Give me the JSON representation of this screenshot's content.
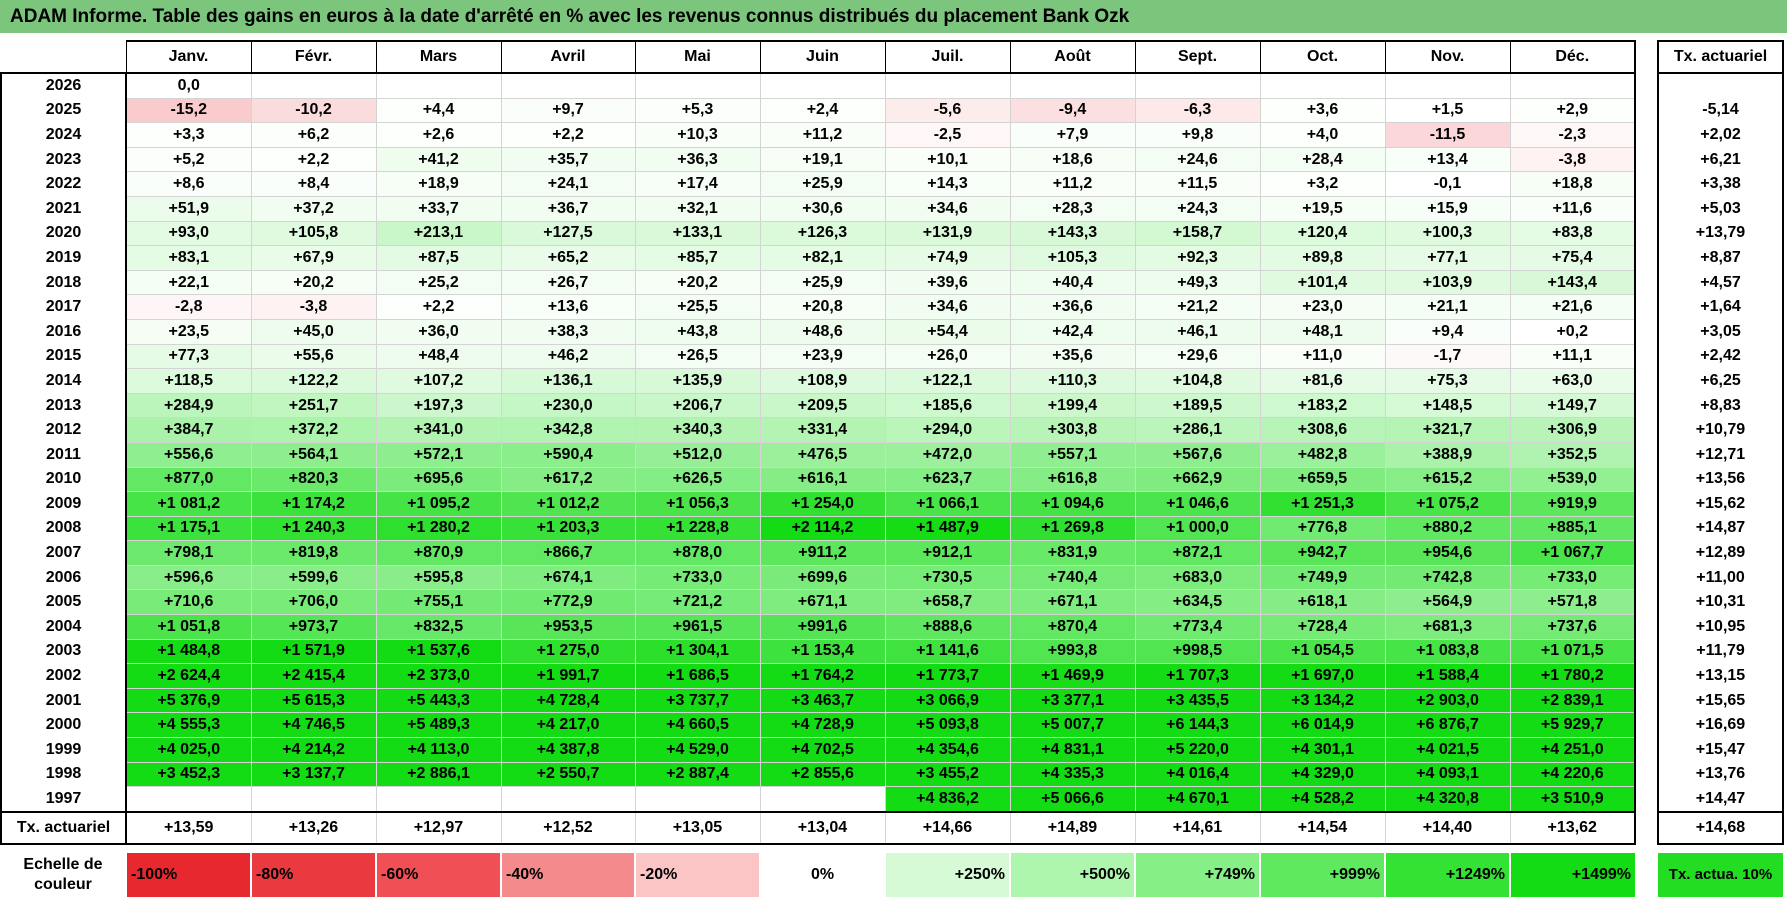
{
  "title": "ADAM Informe. Table des gains en euros à la date d'arrêté en % avec les revenus connus distribués du placement Bank Ozk",
  "months": [
    "Janv.",
    "Févr.",
    "Mars",
    "Avril",
    "Mai",
    "Juin",
    "Juil.",
    "Août",
    "Sept.",
    "Oct.",
    "Nov.",
    "Déc."
  ],
  "tx_header": "Tx. actuariel",
  "rows": [
    {
      "year": "2026",
      "cells": [
        "0,0",
        "",
        "",
        "",
        "",
        "",
        "",
        "",
        "",
        "",
        "",
        ""
      ],
      "tx": ""
    },
    {
      "year": "2025",
      "cells": [
        "-15,2",
        "-10,2",
        "+4,4",
        "+9,7",
        "+5,3",
        "+2,4",
        "-5,6",
        "-9,4",
        "-6,3",
        "+3,6",
        "+1,5",
        "+2,9"
      ],
      "tx": "-5,14"
    },
    {
      "year": "2024",
      "cells": [
        "+3,3",
        "+6,2",
        "+2,6",
        "+2,2",
        "+10,3",
        "+11,2",
        "-2,5",
        "+7,9",
        "+9,8",
        "+4,0",
        "-11,5",
        "-2,3"
      ],
      "tx": "+2,02"
    },
    {
      "year": "2023",
      "cells": [
        "+5,2",
        "+2,2",
        "+41,2",
        "+35,7",
        "+36,3",
        "+19,1",
        "+10,1",
        "+18,6",
        "+24,6",
        "+28,4",
        "+13,4",
        "-3,8"
      ],
      "tx": "+6,21"
    },
    {
      "year": "2022",
      "cells": [
        "+8,6",
        "+8,4",
        "+18,9",
        "+24,1",
        "+17,4",
        "+25,9",
        "+14,3",
        "+11,2",
        "+11,5",
        "+3,2",
        "-0,1",
        "+18,8"
      ],
      "tx": "+3,38"
    },
    {
      "year": "2021",
      "cells": [
        "+51,9",
        "+37,2",
        "+33,7",
        "+36,7",
        "+32,1",
        "+30,6",
        "+34,6",
        "+28,3",
        "+24,3",
        "+19,5",
        "+15,9",
        "+11,6"
      ],
      "tx": "+5,03"
    },
    {
      "year": "2020",
      "cells": [
        "+93,0",
        "+105,8",
        "+213,1",
        "+127,5",
        "+133,1",
        "+126,3",
        "+131,9",
        "+143,3",
        "+158,7",
        "+120,4",
        "+100,3",
        "+83,8"
      ],
      "tx": "+13,79"
    },
    {
      "year": "2019",
      "cells": [
        "+83,1",
        "+67,9",
        "+87,5",
        "+65,2",
        "+85,7",
        "+82,1",
        "+74,9",
        "+105,3",
        "+92,3",
        "+89,8",
        "+77,1",
        "+75,4"
      ],
      "tx": "+8,87"
    },
    {
      "year": "2018",
      "cells": [
        "+22,1",
        "+20,2",
        "+25,2",
        "+26,7",
        "+20,2",
        "+25,9",
        "+39,6",
        "+40,4",
        "+49,3",
        "+101,4",
        "+103,9",
        "+143,4"
      ],
      "tx": "+4,57"
    },
    {
      "year": "2017",
      "cells": [
        "-2,8",
        "-3,8",
        "+2,2",
        "+13,6",
        "+25,5",
        "+20,8",
        "+34,6",
        "+36,6",
        "+21,2",
        "+23,0",
        "+21,1",
        "+21,6"
      ],
      "tx": "+1,64"
    },
    {
      "year": "2016",
      "cells": [
        "+23,5",
        "+45,0",
        "+36,0",
        "+38,3",
        "+43,8",
        "+48,6",
        "+54,4",
        "+42,4",
        "+46,1",
        "+48,1",
        "+9,4",
        "+0,2"
      ],
      "tx": "+3,05"
    },
    {
      "year": "2015",
      "cells": [
        "+77,3",
        "+55,6",
        "+48,4",
        "+46,2",
        "+26,5",
        "+23,9",
        "+26,0",
        "+35,6",
        "+29,6",
        "+11,0",
        "-1,7",
        "+11,1"
      ],
      "tx": "+2,42"
    },
    {
      "year": "2014",
      "cells": [
        "+118,5",
        "+122,2",
        "+107,2",
        "+136,1",
        "+135,9",
        "+108,9",
        "+122,1",
        "+110,3",
        "+104,8",
        "+81,6",
        "+75,3",
        "+63,0"
      ],
      "tx": "+6,25"
    },
    {
      "year": "2013",
      "cells": [
        "+284,9",
        "+251,7",
        "+197,3",
        "+230,0",
        "+206,7",
        "+209,5",
        "+185,6",
        "+199,4",
        "+189,5",
        "+183,2",
        "+148,5",
        "+149,7"
      ],
      "tx": "+8,83"
    },
    {
      "year": "2012",
      "cells": [
        "+384,7",
        "+372,2",
        "+341,0",
        "+342,8",
        "+340,3",
        "+331,4",
        "+294,0",
        "+303,8",
        "+286,1",
        "+308,6",
        "+321,7",
        "+306,9"
      ],
      "tx": "+10,79"
    },
    {
      "year": "2011",
      "cells": [
        "+556,6",
        "+564,1",
        "+572,1",
        "+590,4",
        "+512,0",
        "+476,5",
        "+472,0",
        "+557,1",
        "+567,6",
        "+482,8",
        "+388,9",
        "+352,5"
      ],
      "tx": "+12,71"
    },
    {
      "year": "2010",
      "cells": [
        "+877,0",
        "+820,3",
        "+695,6",
        "+617,2",
        "+626,5",
        "+616,1",
        "+623,7",
        "+616,8",
        "+662,9",
        "+659,5",
        "+615,2",
        "+539,0"
      ],
      "tx": "+13,56"
    },
    {
      "year": "2009",
      "cells": [
        "+1 081,2",
        "+1 174,2",
        "+1 095,2",
        "+1 012,2",
        "+1 056,3",
        "+1 254,0",
        "+1 066,1",
        "+1 094,6",
        "+1 046,6",
        "+1 251,3",
        "+1 075,2",
        "+919,9"
      ],
      "tx": "+15,62"
    },
    {
      "year": "2008",
      "cells": [
        "+1 175,1",
        "+1 240,3",
        "+1 280,2",
        "+1 203,3",
        "+1 228,8",
        "+2 114,2",
        "+1 487,9",
        "+1 269,8",
        "+1 000,0",
        "+776,8",
        "+880,2",
        "+885,1"
      ],
      "tx": "+14,87"
    },
    {
      "year": "2007",
      "cells": [
        "+798,1",
        "+819,8",
        "+870,9",
        "+866,7",
        "+878,0",
        "+911,2",
        "+912,1",
        "+831,9",
        "+872,1",
        "+942,7",
        "+954,6",
        "+1 067,7"
      ],
      "tx": "+12,89"
    },
    {
      "year": "2006",
      "cells": [
        "+596,6",
        "+599,6",
        "+595,8",
        "+674,1",
        "+733,0",
        "+699,6",
        "+730,5",
        "+740,4",
        "+683,0",
        "+749,9",
        "+742,8",
        "+733,0"
      ],
      "tx": "+11,00"
    },
    {
      "year": "2005",
      "cells": [
        "+710,6",
        "+706,0",
        "+755,1",
        "+772,9",
        "+721,2",
        "+671,1",
        "+658,7",
        "+671,1",
        "+634,5",
        "+618,1",
        "+564,9",
        "+571,8"
      ],
      "tx": "+10,31"
    },
    {
      "year": "2004",
      "cells": [
        "+1 051,8",
        "+973,7",
        "+832,5",
        "+953,5",
        "+961,5",
        "+991,6",
        "+888,6",
        "+870,4",
        "+773,4",
        "+728,4",
        "+681,3",
        "+737,6"
      ],
      "tx": "+10,95"
    },
    {
      "year": "2003",
      "cells": [
        "+1 484,8",
        "+1 571,9",
        "+1 537,6",
        "+1 275,0",
        "+1 304,1",
        "+1 153,4",
        "+1 141,6",
        "+993,8",
        "+998,5",
        "+1 054,5",
        "+1 083,8",
        "+1 071,5"
      ],
      "tx": "+11,79"
    },
    {
      "year": "2002",
      "cells": [
        "+2 624,4",
        "+2 415,4",
        "+2 373,0",
        "+1 991,7",
        "+1 686,5",
        "+1 764,2",
        "+1 773,7",
        "+1 469,9",
        "+1 707,3",
        "+1 697,0",
        "+1 588,4",
        "+1 780,2"
      ],
      "tx": "+13,15"
    },
    {
      "year": "2001",
      "cells": [
        "+5 376,9",
        "+5 615,3",
        "+5 443,3",
        "+4 728,4",
        "+3 737,7",
        "+3 463,7",
        "+3 066,9",
        "+3 377,1",
        "+3 435,5",
        "+3 134,2",
        "+2 903,0",
        "+2 839,1"
      ],
      "tx": "+15,65"
    },
    {
      "year": "2000",
      "cells": [
        "+4 555,3",
        "+4 746,5",
        "+5 489,3",
        "+4 217,0",
        "+4 660,5",
        "+4 728,9",
        "+5 093,8",
        "+5 007,7",
        "+6 144,3",
        "+6 014,9",
        "+6 876,7",
        "+5 929,7"
      ],
      "tx": "+16,69"
    },
    {
      "year": "1999",
      "cells": [
        "+4 025,0",
        "+4 214,2",
        "+4 113,0",
        "+4 387,8",
        "+4 529,0",
        "+4 702,5",
        "+4 354,6",
        "+4 831,1",
        "+5 220,0",
        "+4 301,1",
        "+4 021,5",
        "+4 251,0"
      ],
      "tx": "+15,47"
    },
    {
      "year": "1998",
      "cells": [
        "+3 452,3",
        "+3 137,7",
        "+2 886,1",
        "+2 550,7",
        "+2 887,4",
        "+2 855,6",
        "+3 455,2",
        "+4 335,3",
        "+4 016,4",
        "+4 329,0",
        "+4 093,1",
        "+4 220,6"
      ],
      "tx": "+13,76"
    },
    {
      "year": "1997",
      "cells": [
        "",
        "",
        "",
        "",
        "",
        "",
        "+4 836,2",
        "+5 066,6",
        "+4 670,1",
        "+4 528,2",
        "+4 320,8",
        "+3 510,9"
      ],
      "tx": "+14,47"
    }
  ],
  "totals": {
    "label": "Tx. actuariel",
    "cells": [
      "+13,59",
      "+13,26",
      "+12,97",
      "+12,52",
      "+13,05",
      "+13,04",
      "+14,66",
      "+14,89",
      "+14,61",
      "+14,54",
      "+14,40",
      "+13,62"
    ],
    "tx": "+14,68"
  },
  "scale": {
    "label": "Echelle de couleur",
    "items": [
      {
        "text": "-100%",
        "color": "#e8282f",
        "side": "neg"
      },
      {
        "text": "-80%",
        "color": "#ea3a40",
        "side": "neg"
      },
      {
        "text": "-60%",
        "color": "#f05055",
        "side": "neg"
      },
      {
        "text": "-40%",
        "color": "#f48a8c",
        "side": "neg"
      },
      {
        "text": "-20%",
        "color": "#fbc4c5",
        "side": "neg"
      },
      {
        "text": "0%",
        "color": "#ffffff",
        "side": "zero"
      },
      {
        "text": "+250%",
        "color": "#d6fad6",
        "side": "pos"
      },
      {
        "text": "+500%",
        "color": "#aef5ae",
        "side": "pos"
      },
      {
        "text": "+749%",
        "color": "#86ef86",
        "side": "pos"
      },
      {
        "text": "+999%",
        "color": "#5ee95e",
        "side": "pos"
      },
      {
        "text": "+1249%",
        "color": "#33e233",
        "side": "pos"
      },
      {
        "text": "+1499%",
        "color": "#14dc14",
        "side": "pos"
      }
    ],
    "tx_label": "Tx. actua. 10%",
    "tx_color": "#22dd22"
  }
}
